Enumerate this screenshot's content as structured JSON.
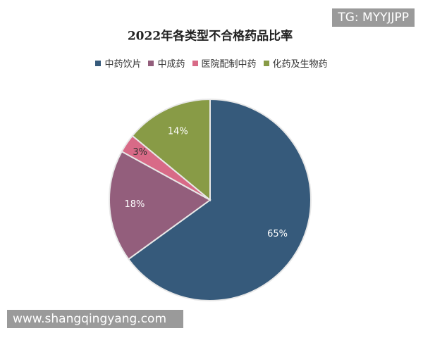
{
  "chart_data": {
    "type": "pie",
    "title": "2022年各类型不合格药品比率",
    "categories": [
      "中药饮片",
      "中成药",
      "医院配制中药",
      "化药及生物药"
    ],
    "values": [
      65,
      18,
      3,
      14
    ],
    "value_labels": [
      "65%",
      "18%",
      "3%",
      "14%"
    ],
    "colors": [
      "#365a7b",
      "#935e7c",
      "#d86a87",
      "#889b46"
    ],
    "legend": "top"
  },
  "watermarks": [
    "TG: MYYJJPP",
    "www.shangqingyang.com"
  ]
}
